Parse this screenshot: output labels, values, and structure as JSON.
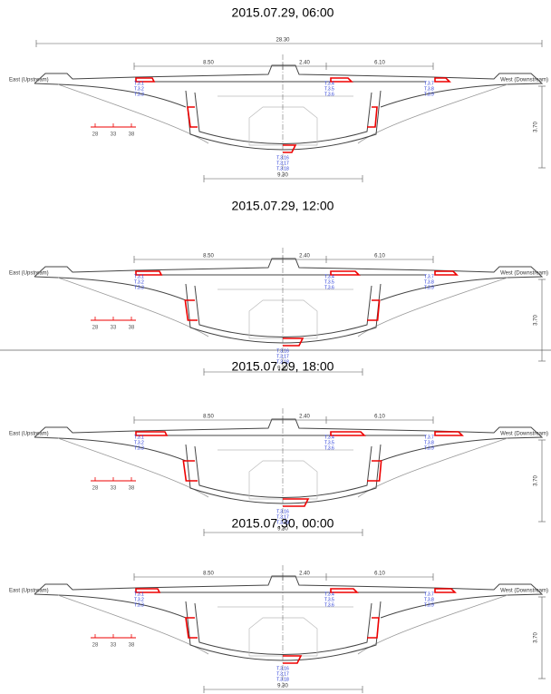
{
  "panels": [
    {
      "title": "2015.07.29, 06:00",
      "total": "28.30",
      "dims": [
        "8.50",
        "2.40",
        "6.10"
      ],
      "east": "East (Upstream)",
      "west": "West (Downstream)",
      "height": "3.70",
      "bottom": "9.30",
      "scale": [
        "28",
        "33",
        "38"
      ],
      "sensors": {
        "left": [
          "T.3.1",
          "T.3.2",
          "T.3.3"
        ],
        "center": [
          "T.3.4",
          "T.3.5",
          "T.3.6"
        ],
        "right": [
          "T.3.7",
          "T.3.8",
          "T.3.9"
        ],
        "bottom": [
          "T.3.16",
          "T.3.17",
          "T.3.18"
        ]
      }
    },
    {
      "title": "2015.07.29, 12:00",
      "dims": [
        "8.50",
        "2.40",
        "6.10"
      ],
      "east": "East (Upstream)",
      "west": "West (Downstream)",
      "height": "3.70",
      "bottom": "9.30",
      "scale": [
        "28",
        "33",
        "38"
      ],
      "sensors": {
        "left": [
          "T.3.1",
          "T.3.2",
          "T.3.3"
        ],
        "center": [
          "T.3.4",
          "T.3.5",
          "T.3.6"
        ],
        "right": [
          "T.3.7",
          "T.3.8",
          "T.3.9"
        ],
        "bottom": [
          "T.3.16",
          "T.3.17",
          "T.3.18"
        ]
      }
    },
    {
      "title": "2015.07.29, 18:00",
      "dims": [
        "8.50",
        "2.40",
        "6.10"
      ],
      "east": "East (Upstream)",
      "west": "West (Downstream)",
      "height": "3.70",
      "bottom": "9.30",
      "scale": [
        "28",
        "33",
        "38"
      ],
      "sensors": {
        "left": [
          "T.3.1",
          "T.3.2",
          "T.3.3"
        ],
        "center": [
          "T.3.4",
          "T.3.5",
          "T.3.6"
        ],
        "right": [
          "T.3.7",
          "T.3.8",
          "T.3.9"
        ],
        "bottom": [
          "T.3.16",
          "T.3.17",
          "T.3.18"
        ]
      }
    },
    {
      "title": "2015.07.30, 00:00",
      "dims": [
        "8.50",
        "2.40",
        "6.10"
      ],
      "east": "East (Upstream)",
      "west": "West (Downstream)",
      "height": "3.70",
      "bottom": "9.30",
      "scale": [
        "28",
        "33",
        "38"
      ],
      "sensors": {
        "left": [
          "T.3.1",
          "T.3.2",
          "T.3.3"
        ],
        "center": [
          "T.3.4",
          "T.3.5",
          "T.3.6"
        ],
        "right": [
          "T.3.7",
          "T.3.8",
          "T.3.9"
        ],
        "bottom": [
          "T.3.16",
          "T.3.17",
          "T.3.18"
        ]
      }
    }
  ]
}
